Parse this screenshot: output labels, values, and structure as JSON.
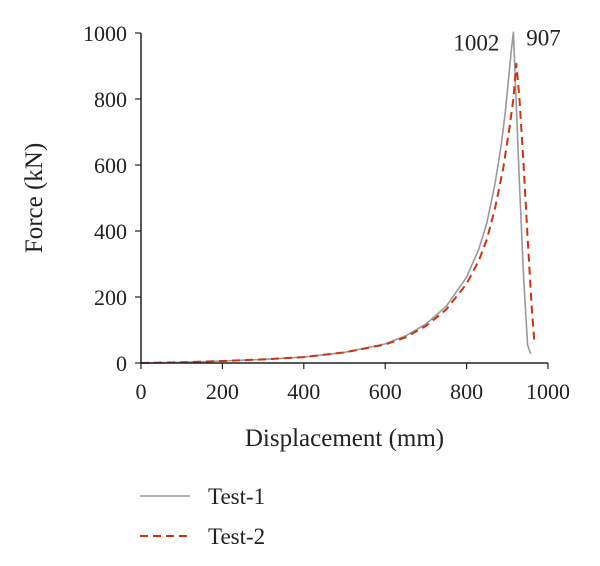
{
  "chart_data": {
    "type": "line",
    "title": "",
    "xlabel": "Displacement (mm)",
    "ylabel": "Force (kN)",
    "xlim": [
      0,
      1000
    ],
    "ylim": [
      0,
      1000
    ],
    "x_ticks": [
      0,
      200,
      400,
      600,
      800,
      1000
    ],
    "y_ticks": [
      0,
      200,
      400,
      600,
      800,
      1000
    ],
    "grid": false,
    "legend_position": "bottom-left",
    "series": [
      {
        "name": "Test-1",
        "color": "#999999",
        "dash": "solid",
        "x": [
          0,
          100,
          200,
          300,
          400,
          500,
          600,
          650,
          700,
          750,
          800,
          830,
          850,
          870,
          885,
          895,
          903,
          910,
          915,
          920,
          930,
          940,
          950,
          957
        ],
        "y": [
          0,
          2,
          6,
          11,
          18,
          32,
          58,
          82,
          118,
          172,
          260,
          345,
          425,
          545,
          660,
          760,
          860,
          950,
          1002,
          850,
          540,
          260,
          55,
          28
        ]
      },
      {
        "name": "Test-2",
        "color": "#cc3311",
        "dash": "dashed",
        "x": [
          0,
          100,
          200,
          300,
          400,
          500,
          600,
          650,
          700,
          750,
          800,
          830,
          850,
          870,
          890,
          905,
          915,
          922,
          930,
          940,
          950,
          960,
          966
        ],
        "y": [
          0,
          2,
          6,
          11,
          18,
          32,
          56,
          78,
          112,
          162,
          240,
          310,
          375,
          470,
          590,
          710,
          800,
          907,
          800,
          600,
          380,
          170,
          70
        ]
      }
    ],
    "annotations": [
      {
        "text": "1002",
        "x": 915,
        "y": 1002
      },
      {
        "text": "907",
        "x": 922,
        "y": 907
      }
    ]
  }
}
